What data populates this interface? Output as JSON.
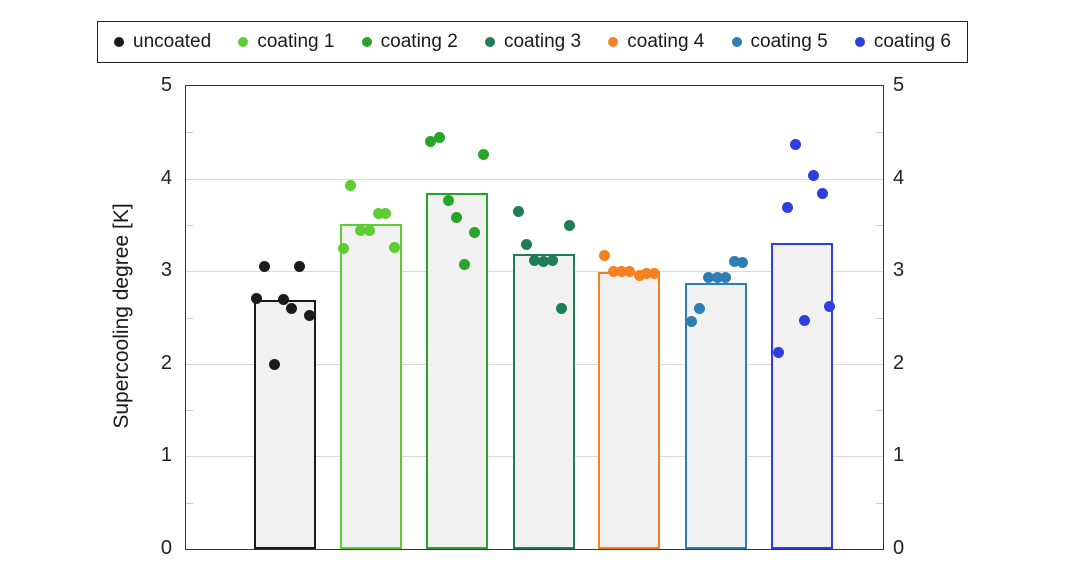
{
  "legend": {
    "items": [
      {
        "label": "uncoated",
        "color": "#1a1a1a"
      },
      {
        "label": "coating 1",
        "color": "#5ecd35"
      },
      {
        "label": "coating 2",
        "color": "#28a428"
      },
      {
        "label": "coating 3",
        "color": "#1e7d52"
      },
      {
        "label": "coating 4",
        "color": "#f58220"
      },
      {
        "label": "coating 5",
        "color": "#2e7db5"
      },
      {
        "label": "coating 6",
        "color": "#2e3ee0"
      }
    ]
  },
  "axes": {
    "ylabel": "Supercooling degree [K]",
    "yticks": [
      "0",
      "1",
      "2",
      "3",
      "4",
      "5"
    ],
    "ylim": [
      0,
      5
    ]
  },
  "chart_data": {
    "type": "bar",
    "title": "",
    "xlabel": "",
    "ylabel": "Supercooling degree [K]",
    "ylim": [
      0,
      5
    ],
    "grid": true,
    "legend_position": "top",
    "bar_fill": "#f1f1f1",
    "categories": [
      "uncoated",
      "coating 1",
      "coating 2",
      "coating 3",
      "coating 4",
      "coating 5",
      "coating 6"
    ],
    "x_centers": [
      99,
      185,
      271,
      358,
      443,
      530,
      616
    ],
    "series": [
      {
        "name": "uncoated",
        "color": "#1a1a1a",
        "bar": 2.69,
        "points": [
          {
            "dx": -21,
            "y": 3.05
          },
          {
            "dx": 14,
            "y": 3.05
          },
          {
            "dx": -29,
            "y": 2.7
          },
          {
            "dx": -2,
            "y": 2.69
          },
          {
            "dx": 6,
            "y": 2.6
          },
          {
            "dx": 24,
            "y": 2.52
          },
          {
            "dx": -11,
            "y": 1.99
          }
        ]
      },
      {
        "name": "coating 1",
        "color": "#5ecd35",
        "bar": 3.51,
        "points": [
          {
            "dx": -21,
            "y": 3.93
          },
          {
            "dx": 7,
            "y": 3.62
          },
          {
            "dx": 14,
            "y": 3.62
          },
          {
            "dx": -11,
            "y": 3.44
          },
          {
            "dx": -2,
            "y": 3.44
          },
          {
            "dx": -28,
            "y": 3.24
          },
          {
            "dx": 23,
            "y": 3.26
          }
        ]
      },
      {
        "name": "coating 2",
        "color": "#28a428",
        "bar": 3.85,
        "points": [
          {
            "dx": -18,
            "y": 4.44
          },
          {
            "dx": -27,
            "y": 4.4
          },
          {
            "dx": 26,
            "y": 4.26
          },
          {
            "dx": -9,
            "y": 3.76
          },
          {
            "dx": -1,
            "y": 3.58
          },
          {
            "dx": 17,
            "y": 3.42
          },
          {
            "dx": 7,
            "y": 3.07
          }
        ]
      },
      {
        "name": "coating 3",
        "color": "#1e7d52",
        "bar": 3.19,
        "points": [
          {
            "dx": -26,
            "y": 3.65
          },
          {
            "dx": 25,
            "y": 3.49
          },
          {
            "dx": -18,
            "y": 3.29
          },
          {
            "dx": -10,
            "y": 3.12
          },
          {
            "dx": -1,
            "y": 3.1
          },
          {
            "dx": 8,
            "y": 3.12
          },
          {
            "dx": 17,
            "y": 2.6
          }
        ]
      },
      {
        "name": "coating 4",
        "color": "#f58220",
        "bar": 2.99,
        "points": [
          {
            "dx": -25,
            "y": 3.17
          },
          {
            "dx": -16,
            "y": 3.0
          },
          {
            "dx": -8,
            "y": 3.0
          },
          {
            "dx": 0,
            "y": 3.0
          },
          {
            "dx": 10,
            "y": 2.95
          },
          {
            "dx": 17,
            "y": 2.97
          },
          {
            "dx": 25,
            "y": 2.97
          }
        ]
      },
      {
        "name": "coating 5",
        "color": "#2e7db5",
        "bar": 2.87,
        "points": [
          {
            "dx": 18,
            "y": 3.11
          },
          {
            "dx": 26,
            "y": 3.09
          },
          {
            "dx": -8,
            "y": 2.93
          },
          {
            "dx": 1,
            "y": 2.93
          },
          {
            "dx": 9,
            "y": 2.93
          },
          {
            "dx": -17,
            "y": 2.6
          },
          {
            "dx": -25,
            "y": 2.46
          }
        ]
      },
      {
        "name": "coating 6",
        "color": "#2e3ee0",
        "bar": 3.3,
        "points": [
          {
            "dx": -7,
            "y": 4.37
          },
          {
            "dx": 11,
            "y": 4.03
          },
          {
            "dx": 20,
            "y": 3.84
          },
          {
            "dx": -15,
            "y": 3.69
          },
          {
            "dx": 27,
            "y": 2.62
          },
          {
            "dx": 2,
            "y": 2.47
          },
          {
            "dx": -24,
            "y": 2.12
          }
        ]
      }
    ]
  }
}
